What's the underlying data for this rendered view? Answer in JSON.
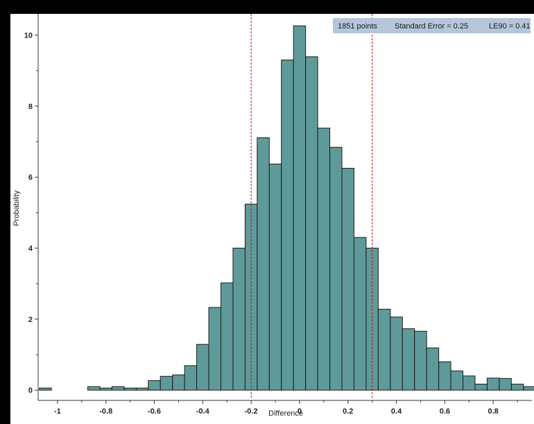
{
  "chart_data": {
    "type": "bar",
    "xlabel": "Difference",
    "ylabel": "Probability",
    "xlim": [
      -1.08,
      0.96
    ],
    "ylim": [
      -0.25,
      10.5
    ],
    "bin_width": 0.05,
    "bin_starts": [
      -1.075,
      -1.025,
      -0.975,
      -0.925,
      -0.875,
      -0.825,
      -0.775,
      -0.725,
      -0.675,
      -0.625,
      -0.575,
      -0.525,
      -0.475,
      -0.425,
      -0.375,
      -0.325,
      -0.275,
      -0.225,
      -0.175,
      -0.125,
      -0.075,
      -0.025,
      0.025,
      0.075,
      0.125,
      0.175,
      0.225,
      0.275,
      0.325,
      0.375,
      0.425,
      0.475,
      0.525,
      0.575,
      0.625,
      0.675,
      0.725,
      0.775,
      0.825,
      0.875,
      0.925
    ],
    "values": [
      0.06,
      0,
      0,
      0,
      0.1,
      0.06,
      0.1,
      0.06,
      0.06,
      0.27,
      0.39,
      0.43,
      0.69,
      1.29,
      2.33,
      3.02,
      4.0,
      5.24,
      7.11,
      6.37,
      9.3,
      10.26,
      9.39,
      7.38,
      6.84,
      6.25,
      4.3,
      4.0,
      2.28,
      2.06,
      1.73,
      1.66,
      1.19,
      0.8,
      0.54,
      0.4,
      0.17,
      0.34,
      0.33,
      0.17,
      0.1
    ],
    "x_ticks": [
      -1,
      -0.8,
      -0.6,
      -0.4,
      -0.2,
      0,
      0.2,
      0.4,
      0.6,
      0.8
    ],
    "x_tick_labels": [
      "-1",
      "-0.8",
      "-0.6",
      "-0.4",
      "-0.2",
      "0",
      "0.2",
      "0.4",
      "0.6",
      "0.8"
    ],
    "y_ticks": [
      0,
      2,
      4,
      6,
      8,
      10
    ],
    "y_tick_labels": [
      "0",
      "2",
      "4",
      "6",
      "8",
      "10"
    ],
    "y_minor_ticks": [
      1,
      3,
      5,
      7,
      9
    ],
    "reference_lines": [
      -0.2,
      0.3
    ],
    "stats": {
      "points": "1851 points",
      "standard_error": "Standard Error = 0.25",
      "le90": "LE90 = 0.41"
    },
    "colors": {
      "bar_fill": "#5f9a9a",
      "bar_stroke": "#1a1a1a",
      "reference_line": "#cc0000",
      "stats_background": "#b6c6da"
    }
  }
}
